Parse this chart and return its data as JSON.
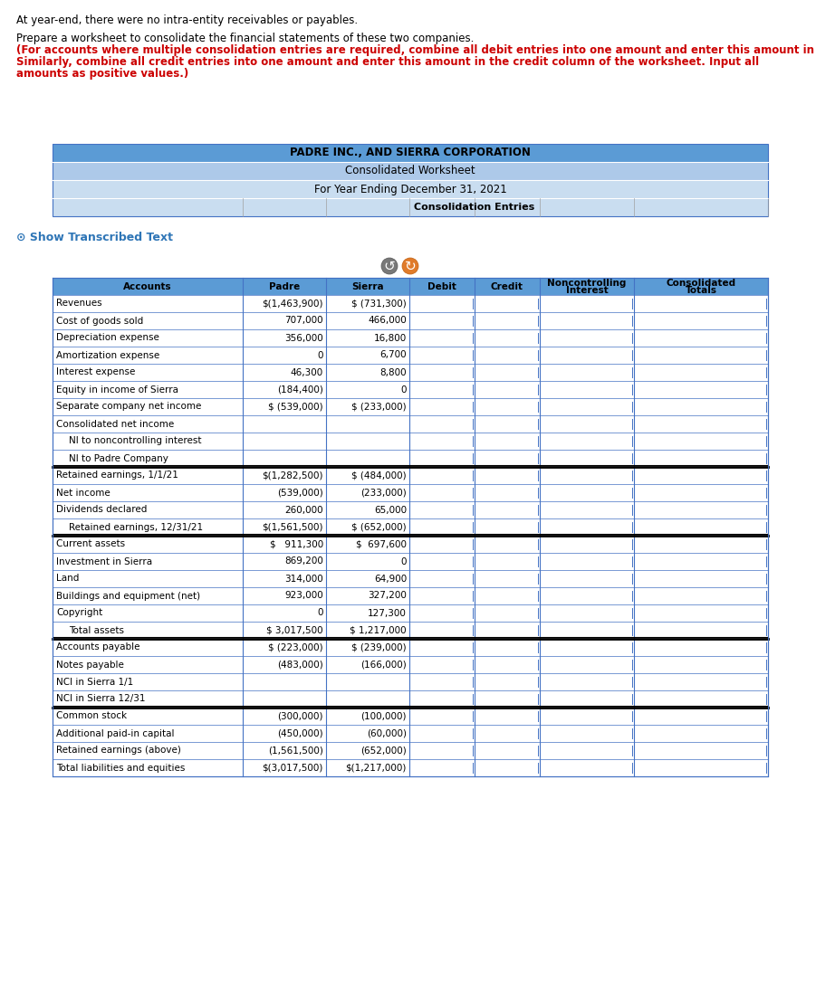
{
  "intro_text1": "At year-end, there were no intra-entity receivables or payables.",
  "intro_text2_normal": "Prepare a worksheet to consolidate the financial statements of these two companies.",
  "intro_text2_bold_line1": "(For accounts where multiple consolidation entries are required, combine all debit entries into one amount and enter this amount in the debit column of the worksheet.",
  "intro_text2_bold_line2": "Similarly, combine all credit entries into one amount and enter this amount in the credit column of the worksheet. Input all",
  "intro_text2_bold_line3": "amounts as positive values.)",
  "title1": "PADRE INC., AND SIERRA CORPORATION",
  "title2": "Consolidated Worksheet",
  "title3": "For Year Ending December 31, 2021",
  "title4": "Consolidation Entries",
  "header_bg": "#5b9bd5",
  "header_bg2": "#adc9e9",
  "header_bg3": "#c9ddf0",
  "col_headers": [
    "Accounts",
    "Padre",
    "Sierra",
    "Debit",
    "Credit",
    "Noncontrolling\nInterest",
    "Consolidated\nTotals"
  ],
  "rows": [
    {
      "account": "Revenues",
      "padre": "$(1,463,900)",
      "sierra": "$ (731,300)",
      "indent": false,
      "double_bottom": false
    },
    {
      "account": "Cost of goods sold",
      "padre": "707,000",
      "sierra": "466,000",
      "indent": false,
      "double_bottom": false
    },
    {
      "account": "Depreciation expense",
      "padre": "356,000",
      "sierra": "16,800",
      "indent": false,
      "double_bottom": false
    },
    {
      "account": "Amortization expense",
      "padre": "0",
      "sierra": "6,700",
      "indent": false,
      "double_bottom": false
    },
    {
      "account": "Interest expense",
      "padre": "46,300",
      "sierra": "8,800",
      "indent": false,
      "double_bottom": false
    },
    {
      "account": "Equity in income of Sierra",
      "padre": "(184,400)",
      "sierra": "0",
      "indent": false,
      "double_bottom": false
    },
    {
      "account": "Separate company net income",
      "padre": "$ (539,000)",
      "sierra": "$ (233,000)",
      "indent": false,
      "double_bottom": false
    },
    {
      "account": "Consolidated net income",
      "padre": "",
      "sierra": "",
      "indent": false,
      "double_bottom": false
    },
    {
      "account": "NI to noncontrolling interest",
      "padre": "",
      "sierra": "",
      "indent": true,
      "double_bottom": false
    },
    {
      "account": "NI to Padre Company",
      "padre": "",
      "sierra": "",
      "indent": true,
      "double_bottom": true
    },
    {
      "account": "Retained earnings, 1/1/21",
      "padre": "$(1,282,500)",
      "sierra": "$ (484,000)",
      "indent": false,
      "double_bottom": false
    },
    {
      "account": "Net income",
      "padre": "(539,000)",
      "sierra": "(233,000)",
      "indent": false,
      "double_bottom": false
    },
    {
      "account": "Dividends declared",
      "padre": "260,000",
      "sierra": "65,000",
      "indent": false,
      "double_bottom": false
    },
    {
      "account": "Retained earnings, 12/31/21",
      "padre": "$(1,561,500)",
      "sierra": "$ (652,000)",
      "indent": true,
      "double_bottom": true
    },
    {
      "account": "Current assets",
      "padre": "$   911,300",
      "sierra": "$  697,600",
      "indent": false,
      "double_bottom": false
    },
    {
      "account": "Investment in Sierra",
      "padre": "869,200",
      "sierra": "0",
      "indent": false,
      "double_bottom": false
    },
    {
      "account": "Land",
      "padre": "314,000",
      "sierra": "64,900",
      "indent": false,
      "double_bottom": false
    },
    {
      "account": "Buildings and equipment (net)",
      "padre": "923,000",
      "sierra": "327,200",
      "indent": false,
      "double_bottom": false
    },
    {
      "account": "Copyright",
      "padre": "0",
      "sierra": "127,300",
      "indent": false,
      "double_bottom": false
    },
    {
      "account": "Total assets",
      "padre": "$ 3,017,500",
      "sierra": "$ 1,217,000",
      "indent": true,
      "double_bottom": true
    },
    {
      "account": "Accounts payable",
      "padre": "$ (223,000)",
      "sierra": "$ (239,000)",
      "indent": false,
      "double_bottom": false
    },
    {
      "account": "Notes payable",
      "padre": "(483,000)",
      "sierra": "(166,000)",
      "indent": false,
      "double_bottom": false
    },
    {
      "account": "NCI in Sierra 1/1",
      "padre": "",
      "sierra": "",
      "indent": false,
      "double_bottom": false
    },
    {
      "account": "NCI in Sierra 12/31",
      "padre": "",
      "sierra": "",
      "indent": false,
      "double_bottom": true
    },
    {
      "account": "Common stock",
      "padre": "(300,000)",
      "sierra": "(100,000)",
      "indent": false,
      "double_bottom": false
    },
    {
      "account": "Additional paid-in capital",
      "padre": "(450,000)",
      "sierra": "(60,000)",
      "indent": false,
      "double_bottom": false
    },
    {
      "account": "Retained earnings (above)",
      "padre": "(1,561,500)",
      "sierra": "(652,000)",
      "indent": false,
      "double_bottom": false
    },
    {
      "account": "Total liabilities and equities",
      "padre": "$(3,017,500)",
      "sierra": "$(1,217,000)",
      "indent": false,
      "double_bottom": false
    }
  ],
  "show_transcribed_color": "#2e75b6",
  "border_color": "#4472c4"
}
